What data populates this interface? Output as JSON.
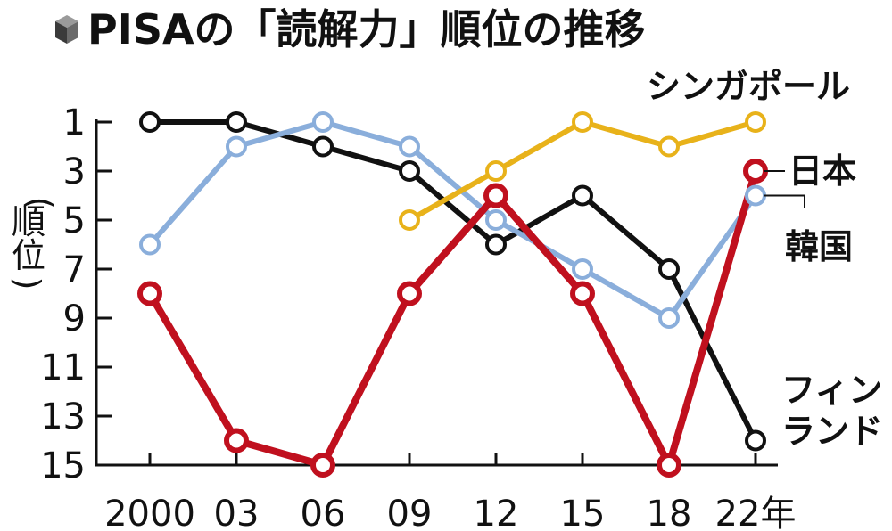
{
  "title": "PISAの「読解力」順位の推移",
  "chart_data": {
    "type": "line",
    "title": "PISAの「読解力」順位の推移",
    "ylabel": "（順位）",
    "y_inverted": true,
    "ylim": [
      1,
      15
    ],
    "y_ticks": [
      "1",
      "3",
      "5",
      "7",
      "9",
      "11",
      "13",
      "15"
    ],
    "categories": [
      "2000",
      "03",
      "06",
      "09",
      "12",
      "15",
      "18",
      "22年"
    ],
    "grid": false,
    "legend": "direct labels at line ends",
    "series": [
      {
        "name": "フィンランド",
        "color": "#111111",
        "values": [
          1,
          1,
          2,
          3,
          6,
          4,
          7,
          14
        ]
      },
      {
        "name": "韓国",
        "color": "#8aaedb",
        "values": [
          6,
          2,
          1,
          2,
          5,
          7,
          9,
          4
        ]
      },
      {
        "name": "日本",
        "color": "#c0101e",
        "values": [
          8,
          14,
          15,
          8,
          4,
          8,
          15,
          3
        ]
      },
      {
        "name": "シンガポール",
        "color": "#e8b21a",
        "values": [
          null,
          null,
          null,
          5,
          3,
          1,
          2,
          1
        ]
      }
    ]
  }
}
